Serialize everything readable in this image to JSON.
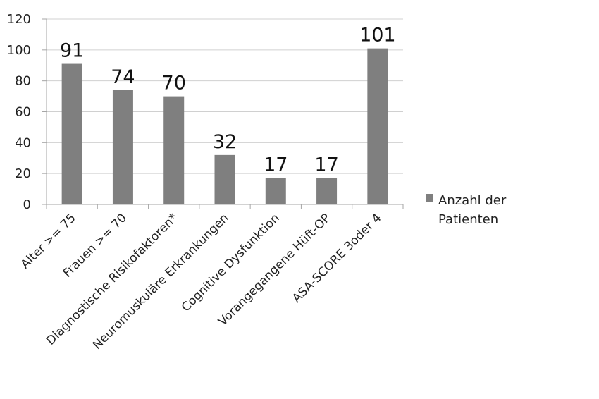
{
  "chart_data": {
    "type": "bar",
    "categories": [
      "Alter >= 75",
      "Frauen >= 70",
      "Diagnostische Risikofaktoren*",
      "Neuromuskuläre Erkrankungen",
      "Cognitive Dysfunktion",
      "Vorangegangene Hüft-OP",
      "ASA-SCORE 3oder 4"
    ],
    "series": [
      {
        "name": "Anzahl der Patienten",
        "legend_lines": [
          "Anzahl der",
          "Patienten"
        ],
        "values": [
          91,
          74,
          70,
          32,
          17,
          17,
          101
        ],
        "color": "#7f7f7f"
      }
    ],
    "data_labels": [
      "91",
      "74",
      "70",
      "32",
      "17",
      "17",
      "101"
    ],
    "yticks": [
      "0",
      "20",
      "40",
      "60",
      "80",
      "100",
      "120"
    ],
    "ylim": [
      0,
      120
    ],
    "grid": true,
    "legend_position": "right",
    "title": "",
    "xlabel": "",
    "ylabel": ""
  }
}
